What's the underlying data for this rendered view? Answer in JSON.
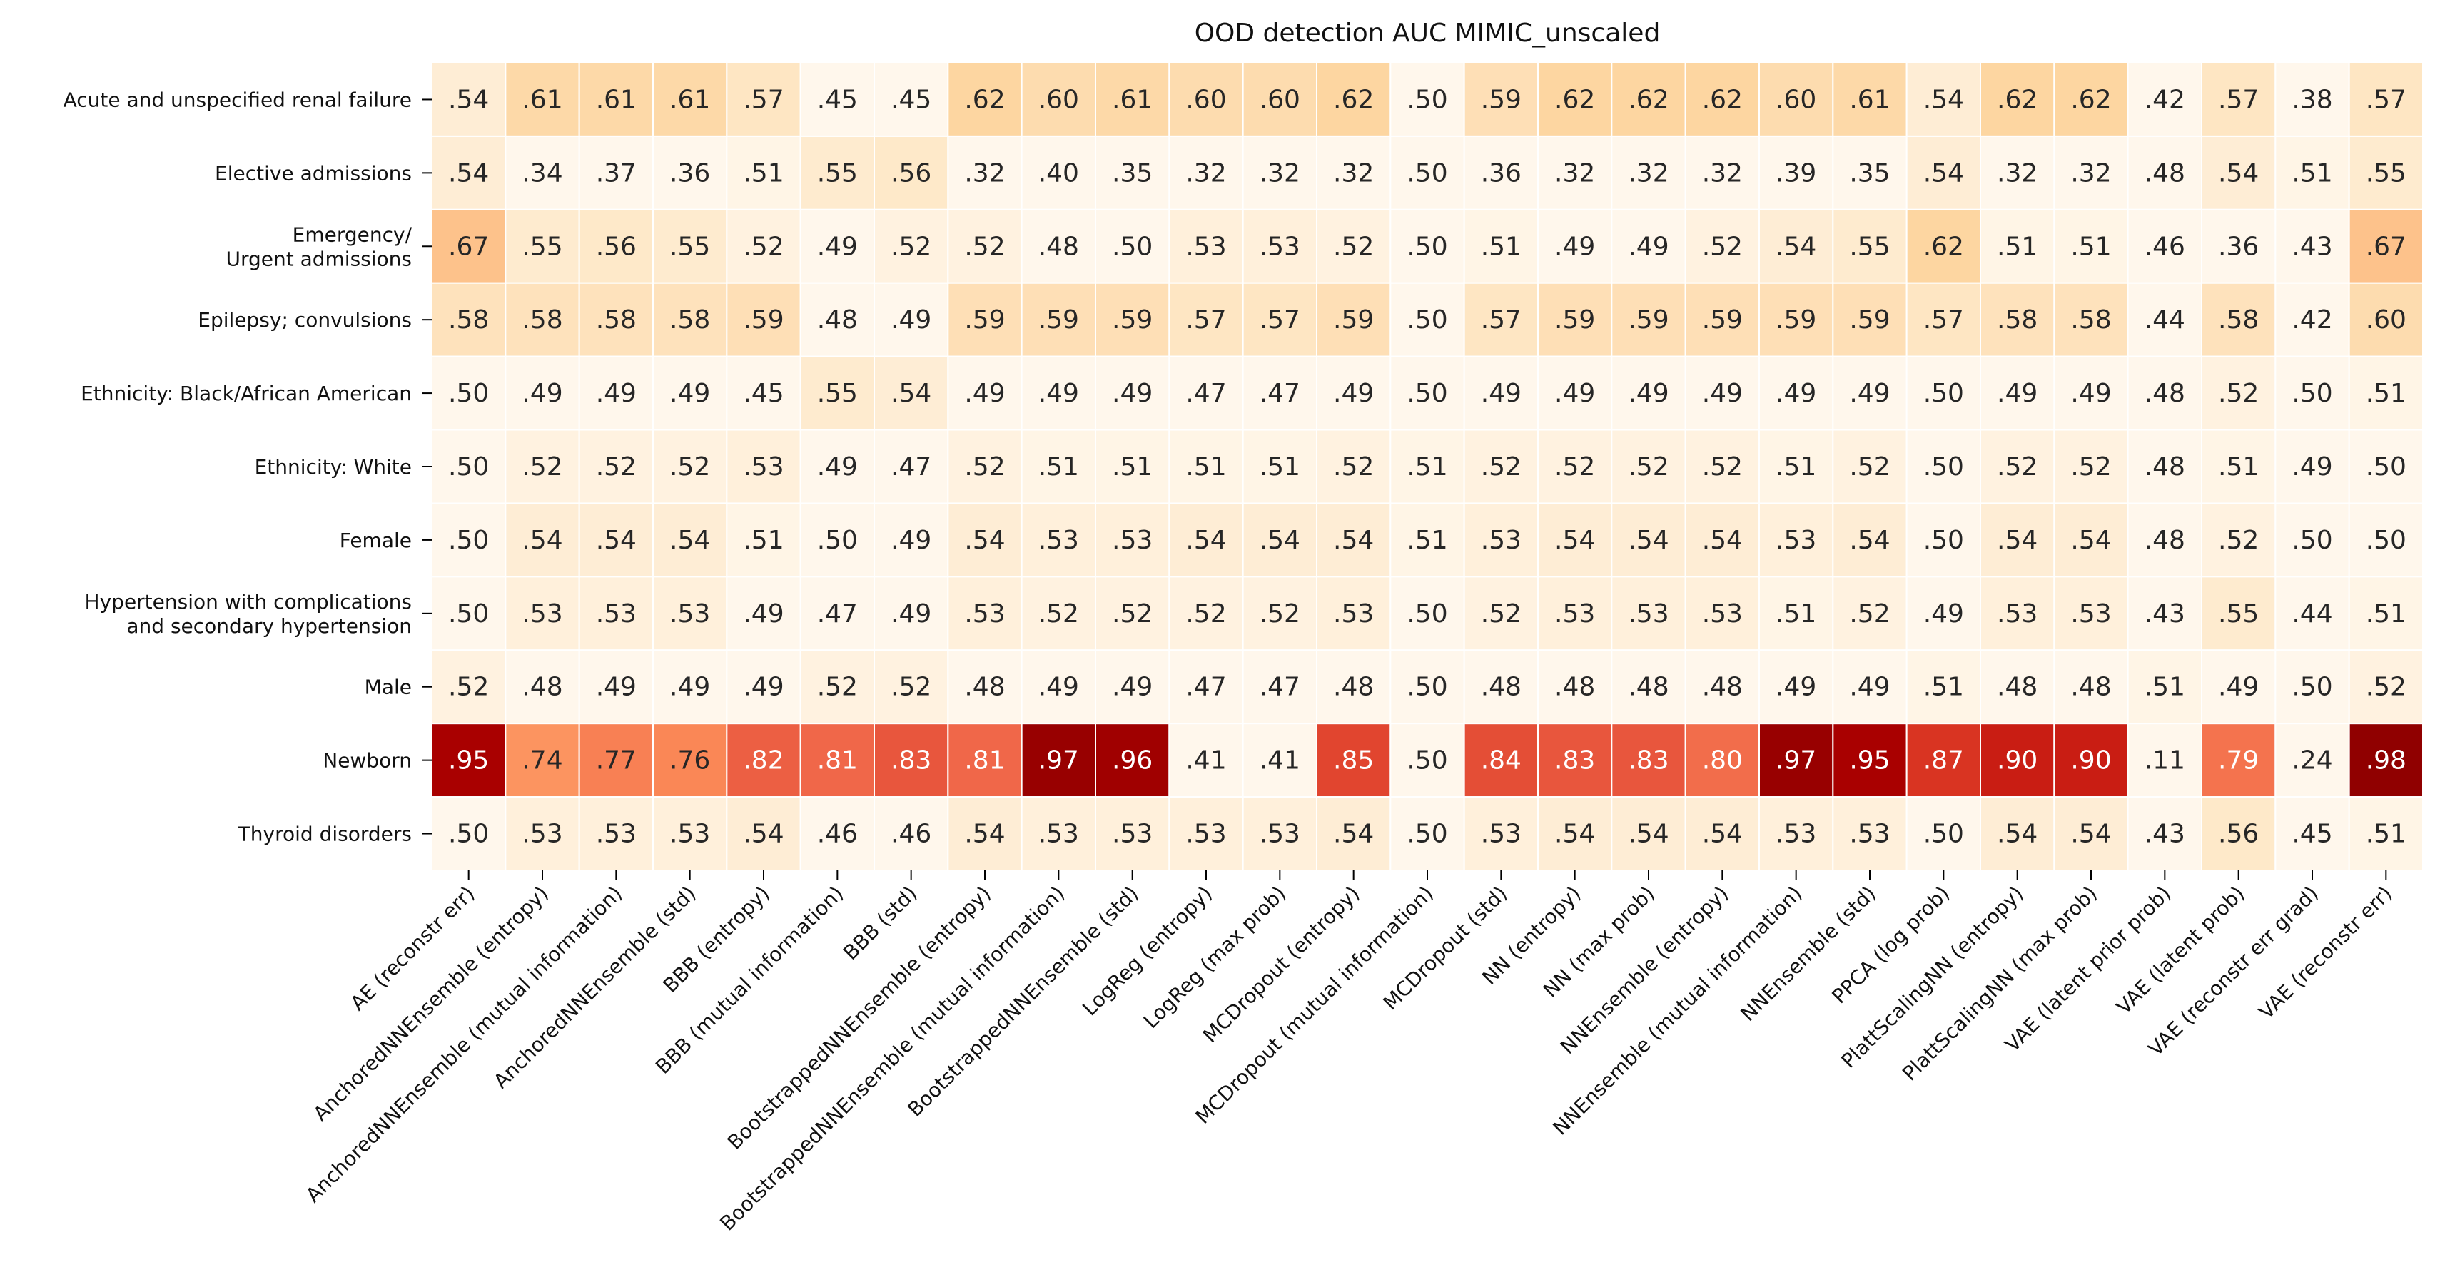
{
  "chart_data": {
    "type": "heatmap",
    "title": "OOD detection AUC MIMIC_unscaled",
    "rows": [
      "Acute and unspecified renal failure",
      "Elective admissions",
      "Emergency/\nUrgent admissions",
      "Epilepsy; convulsions",
      "Ethnicity: Black/African American",
      "Ethnicity: White",
      "Female",
      "Hypertension with complications\nand secondary hypertension",
      "Male",
      "Newborn",
      "Thyroid disorders"
    ],
    "columns": [
      "AE (reconstr err)",
      "AnchoredNNEnsemble (entropy)",
      "AnchoredNNEnsemble (mutual information)",
      "AnchoredNNEnsemble (std)",
      "BBB (entropy)",
      "BBB (mutual information)",
      "BBB (std)",
      "BootstrappedNNEnsemble (entropy)",
      "BootstrappedNNEnsemble (mutual information)",
      "BootstrappedNNEnsemble (std)",
      "LogReg (entropy)",
      "LogReg (max prob)",
      "MCDropout (entropy)",
      "MCDropout (mutual information)",
      "MCDropout (std)",
      "NN (entropy)",
      "NN (max prob)",
      "NNEnsemble (entropy)",
      "NNEnsemble (mutual information)",
      "NNEnsemble (std)",
      "PPCA (log prob)",
      "PlattScalingNN (entropy)",
      "PlattScalingNN (max prob)",
      "VAE (latent prior prob)",
      "VAE (latent prob)",
      "VAE (reconstr err grad)",
      "VAE (reconstr err)"
    ],
    "values": [
      [
        0.54,
        0.61,
        0.61,
        0.61,
        0.57,
        0.45,
        0.45,
        0.62,
        0.6,
        0.61,
        0.6,
        0.6,
        0.62,
        0.5,
        0.59,
        0.62,
        0.62,
        0.62,
        0.6,
        0.61,
        0.54,
        0.62,
        0.62,
        0.42,
        0.57,
        0.38,
        0.57
      ],
      [
        0.54,
        0.34,
        0.37,
        0.36,
        0.51,
        0.55,
        0.56,
        0.32,
        0.4,
        0.35,
        0.32,
        0.32,
        0.32,
        0.5,
        0.36,
        0.32,
        0.32,
        0.32,
        0.39,
        0.35,
        0.54,
        0.32,
        0.32,
        0.48,
        0.54,
        0.51,
        0.55
      ],
      [
        0.67,
        0.55,
        0.56,
        0.55,
        0.52,
        0.49,
        0.52,
        0.52,
        0.48,
        0.5,
        0.53,
        0.53,
        0.52,
        0.5,
        0.51,
        0.49,
        0.49,
        0.52,
        0.54,
        0.55,
        0.62,
        0.51,
        0.51,
        0.46,
        0.36,
        0.43,
        0.67
      ],
      [
        0.58,
        0.58,
        0.58,
        0.58,
        0.59,
        0.48,
        0.49,
        0.59,
        0.59,
        0.59,
        0.57,
        0.57,
        0.59,
        0.5,
        0.57,
        0.59,
        0.59,
        0.59,
        0.59,
        0.59,
        0.57,
        0.58,
        0.58,
        0.44,
        0.58,
        0.42,
        0.6
      ],
      [
        0.5,
        0.49,
        0.49,
        0.49,
        0.45,
        0.55,
        0.54,
        0.49,
        0.49,
        0.49,
        0.47,
        0.47,
        0.49,
        0.5,
        0.49,
        0.49,
        0.49,
        0.49,
        0.49,
        0.49,
        0.5,
        0.49,
        0.49,
        0.48,
        0.52,
        0.5,
        0.51
      ],
      [
        0.5,
        0.52,
        0.52,
        0.52,
        0.53,
        0.49,
        0.47,
        0.52,
        0.51,
        0.51,
        0.51,
        0.51,
        0.52,
        0.51,
        0.52,
        0.52,
        0.52,
        0.52,
        0.51,
        0.52,
        0.5,
        0.52,
        0.52,
        0.48,
        0.51,
        0.49,
        0.5
      ],
      [
        0.5,
        0.54,
        0.54,
        0.54,
        0.51,
        0.5,
        0.49,
        0.54,
        0.53,
        0.53,
        0.54,
        0.54,
        0.54,
        0.51,
        0.53,
        0.54,
        0.54,
        0.54,
        0.53,
        0.54,
        0.5,
        0.54,
        0.54,
        0.48,
        0.52,
        0.5,
        0.5
      ],
      [
        0.5,
        0.53,
        0.53,
        0.53,
        0.49,
        0.47,
        0.49,
        0.53,
        0.52,
        0.52,
        0.52,
        0.52,
        0.53,
        0.5,
        0.52,
        0.53,
        0.53,
        0.53,
        0.51,
        0.52,
        0.49,
        0.53,
        0.53,
        0.43,
        0.55,
        0.44,
        0.51
      ],
      [
        0.52,
        0.48,
        0.49,
        0.49,
        0.49,
        0.52,
        0.52,
        0.48,
        0.49,
        0.49,
        0.47,
        0.47,
        0.48,
        0.5,
        0.48,
        0.48,
        0.48,
        0.48,
        0.49,
        0.49,
        0.51,
        0.48,
        0.48,
        0.51,
        0.49,
        0.5,
        0.52
      ],
      [
        0.95,
        0.74,
        0.77,
        0.76,
        0.82,
        0.81,
        0.83,
        0.81,
        0.97,
        0.96,
        0.41,
        0.41,
        0.85,
        0.5,
        0.84,
        0.83,
        0.83,
        0.8,
        0.97,
        0.95,
        0.87,
        0.9,
        0.9,
        0.11,
        0.79,
        0.24,
        0.98
      ],
      [
        0.5,
        0.53,
        0.53,
        0.53,
        0.54,
        0.46,
        0.46,
        0.54,
        0.53,
        0.53,
        0.53,
        0.53,
        0.54,
        0.5,
        0.53,
        0.54,
        0.54,
        0.54,
        0.53,
        0.53,
        0.5,
        0.54,
        0.54,
        0.43,
        0.56,
        0.45,
        0.51
      ]
    ],
    "value_format": "two decimals, leading zero dropped",
    "colormap": "OrRd",
    "color_range": [
      0.5,
      1.0
    ],
    "cell_border_color": "#ffffff",
    "grid": false,
    "legend": "none"
  }
}
